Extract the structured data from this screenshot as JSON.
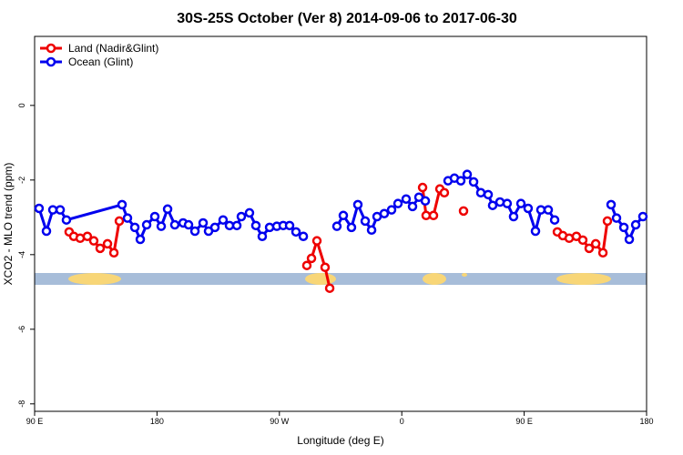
{
  "chart_data": {
    "type": "line",
    "title": "30S-25S October (Ver 8)   2014-09-06 to 2017-06-30",
    "x_label": "Longitude (deg E)",
    "y_label": "XCO2 - MLO trend (ppm)",
    "xlim": [
      90,
      540
    ],
    "xticks": [
      {
        "value": 90,
        "label": "90 E"
      },
      180,
      {
        "value": 270,
        "label": "90 W"
      },
      {
        "value": 360,
        "label": "0"
      },
      {
        "value": 450,
        "label": "90 E"
      },
      {
        "value": 540,
        "label": "180"
      }
    ],
    "ylim": [
      -8.2,
      1.85
    ],
    "yticks": [
      0,
      -2,
      -4,
      -6,
      -8
    ],
    "legend": "top-left",
    "series": [
      {
        "name": "Land (Nadir&Glint)",
        "color": "#ee0000",
        "x": [
          115.4,
          118.8,
          123.5,
          128.8,
          133.5,
          138.2,
          143.6,
          148.3,
          152.3,
          null,
          290.2,
          293.6,
          297.6,
          303.6,
          307.0,
          null,
          375.3,
          377.9,
          383.3,
          388.0,
          391.3,
          null,
          405.4,
          null,
          474.4,
          478.4,
          483.1,
          488.4,
          493.1,
          497.8,
          502.6,
          507.9,
          511.2
        ],
        "values": [
          -3.39,
          -3.51,
          -3.56,
          -3.51,
          -3.63,
          -3.83,
          -3.71,
          -3.95,
          -3.1,
          null,
          -4.29,
          -4.1,
          -3.63,
          -4.34,
          -4.9,
          null,
          -2.2,
          -2.95,
          -2.95,
          -2.24,
          -2.34,
          null,
          -2.83,
          null,
          -3.39,
          -3.49,
          -3.56,
          -3.51,
          -3.61,
          -3.83,
          -3.71,
          -3.95,
          -3.1
        ]
      },
      {
        "name": "Ocean (Glint)",
        "color": "#0000ee",
        "x": [
          93.3,
          98.7,
          103.4,
          108.8,
          113.4,
          154.3,
          158.3,
          163.7,
          167.7,
          172.4,
          178.4,
          183.1,
          187.8,
          193.1,
          199.2,
          203.2,
          207.9,
          213.9,
          217.9,
          222.6,
          228.6,
          233.3,
          238.7,
          242.0,
          248.0,
          252.7,
          257.4,
          262.8,
          268.1,
          272.8,
          277.5,
          282.2,
          287.6,
          null,
          312.3,
          317.0,
          323.0,
          327.7,
          333.1,
          337.8,
          341.8,
          347.1,
          352.5,
          357.2,
          363.2,
          367.9,
          372.6,
          377.3,
          null,
          394.0,
          398.7,
          403.4,
          408.1,
          412.8,
          418.1,
          423.5,
          426.8,
          432.2,
          437.5,
          442.2,
          447.6,
          452.9,
          458.3,
          462.3,
          467.7,
          472.4,
          null,
          513.9,
          517.9,
          523.3,
          527.3,
          532.0,
          537.3
        ],
        "values": [
          -2.76,
          -3.37,
          -2.8,
          -2.8,
          -3.07,
          -2.66,
          -3.02,
          -3.27,
          -3.59,
          -3.2,
          -2.98,
          -3.24,
          -2.78,
          -3.2,
          -3.15,
          -3.2,
          -3.37,
          -3.15,
          -3.37,
          -3.27,
          -3.07,
          -3.22,
          -3.22,
          -2.98,
          -2.88,
          -3.22,
          -3.51,
          -3.27,
          -3.24,
          -3.22,
          -3.22,
          -3.39,
          -3.51,
          null,
          -3.24,
          -2.95,
          -3.27,
          -2.66,
          -3.1,
          -3.34,
          -2.98,
          -2.9,
          -2.8,
          -2.63,
          -2.51,
          -2.71,
          -2.46,
          -2.56,
          null,
          -2.02,
          -1.95,
          -2.02,
          -1.85,
          -2.05,
          -2.34,
          -2.39,
          -2.68,
          -2.59,
          -2.63,
          -2.98,
          -2.63,
          -2.76,
          -3.37,
          -2.8,
          -2.8,
          -3.07,
          null,
          -2.66,
          -3.02,
          -3.27,
          -3.59,
          -3.2,
          -2.98
        ]
      }
    ]
  }
}
